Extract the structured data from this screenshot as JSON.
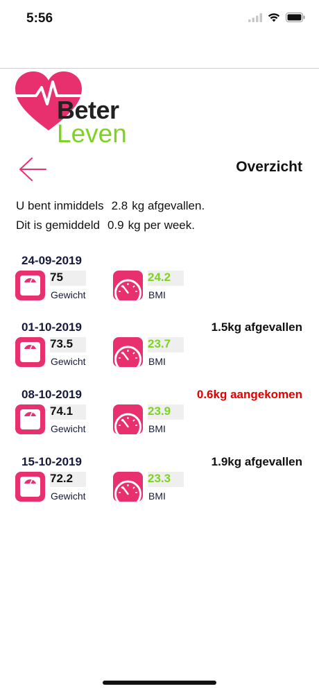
{
  "status_bar": {
    "time": "5:56"
  },
  "brand": {
    "line1": "Beter",
    "line2": "Leven",
    "heart_color": "#e8306f",
    "leven_color": "#7ed321"
  },
  "header": {
    "title": "Overzicht"
  },
  "summary": {
    "line1_prefix": "U bent inmiddels",
    "line1_value": "2.8",
    "line1_suffix": "kg afgevallen.",
    "line2_prefix": "Dit is gemiddeld",
    "line2_value": "0.9",
    "line2_suffix": "kg per week."
  },
  "labels": {
    "weight": "Gewicht",
    "bmi": "BMI"
  },
  "entries": [
    {
      "date": "24-09-2019",
      "weight": "75",
      "bmi": "24.2",
      "change": "",
      "change_type": "none"
    },
    {
      "date": "01-10-2019",
      "weight": "73.5",
      "bmi": "23.7",
      "change": "1.5kg afgevallen",
      "change_type": "loss"
    },
    {
      "date": "08-10-2019",
      "weight": "74.1",
      "bmi": "23.9",
      "change": "0.6kg aangekomen",
      "change_type": "gain"
    },
    {
      "date": "15-10-2019",
      "weight": "72.2",
      "bmi": "23.3",
      "change": "1.9kg afgevallen",
      "change_type": "loss"
    }
  ],
  "icons": {
    "back": "arrow-left-icon",
    "scale": "scale-icon",
    "bmi": "speedometer-icon",
    "wifi": "wifi-icon",
    "battery": "battery-icon",
    "signal": "signal-icon"
  },
  "colors": {
    "accent": "#e8306f",
    "green": "#7ed321",
    "gain_red": "#e00000",
    "date_navy": "#151a3d"
  }
}
